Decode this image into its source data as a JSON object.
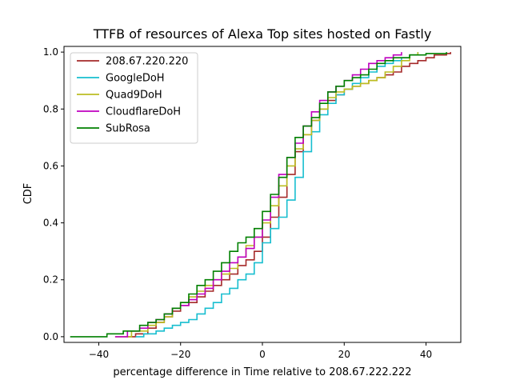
{
  "chart_data": {
    "type": "line",
    "title": "TTFB of resources of Alexa Top sites hosted on Fastly",
    "xlabel": "percentage difference in Time relative to 208.67.222.222",
    "ylabel": "CDF",
    "xlim": [
      -48.5,
      48.5
    ],
    "ylim": [
      -0.02,
      1.02
    ],
    "xticks": [
      -40,
      -20,
      0,
      20,
      40
    ],
    "yticks": [
      0.0,
      0.2,
      0.4,
      0.6,
      0.8,
      1.0
    ],
    "xtick_labels": [
      "−40",
      "−20",
      "0",
      "20",
      "40"
    ],
    "ytick_labels": [
      "0.0",
      "0.2",
      "0.4",
      "0.6",
      "0.8",
      "1.0"
    ],
    "grid": false,
    "legend_position": "top-left",
    "series": [
      {
        "name": "208.67.220.220",
        "color": "#a52a2a",
        "x": [
          -33,
          -31,
          -28,
          -26,
          -24,
          -22,
          -20,
          -18,
          -16,
          -14,
          -12,
          -10,
          -8,
          -6,
          -4,
          -2,
          0,
          2,
          4,
          6,
          8,
          10,
          12,
          14,
          16,
          18,
          20,
          22,
          24,
          26,
          28,
          30,
          32,
          34,
          36,
          38,
          40,
          42,
          44,
          45,
          46
        ],
        "y": [
          0.0,
          0.01,
          0.03,
          0.05,
          0.07,
          0.09,
          0.11,
          0.12,
          0.14,
          0.16,
          0.18,
          0.2,
          0.22,
          0.25,
          0.27,
          0.3,
          0.35,
          0.42,
          0.49,
          0.57,
          0.65,
          0.71,
          0.76,
          0.8,
          0.83,
          0.85,
          0.87,
          0.88,
          0.89,
          0.9,
          0.91,
          0.92,
          0.93,
          0.95,
          0.96,
          0.97,
          0.98,
          0.99,
          0.99,
          0.995,
          1.0
        ]
      },
      {
        "name": "GoogleDoH",
        "color": "#17becf",
        "x": [
          -31,
          -29,
          -26,
          -24,
          -22,
          -20,
          -18,
          -16,
          -14,
          -12,
          -10,
          -8,
          -6,
          -4,
          -2,
          0,
          2,
          4,
          6,
          8,
          10,
          12,
          14,
          16,
          18,
          20,
          22,
          24,
          26,
          28,
          30,
          32,
          34,
          36,
          38
        ],
        "y": [
          0.0,
          0.01,
          0.02,
          0.03,
          0.04,
          0.05,
          0.06,
          0.08,
          0.1,
          0.12,
          0.15,
          0.17,
          0.2,
          0.22,
          0.26,
          0.33,
          0.38,
          0.42,
          0.48,
          0.56,
          0.65,
          0.72,
          0.78,
          0.82,
          0.85,
          0.87,
          0.89,
          0.91,
          0.93,
          0.95,
          0.96,
          0.97,
          0.98,
          0.99,
          1.0
        ]
      },
      {
        "name": "Quad9DoH",
        "color": "#bcbd22",
        "x": [
          -36,
          -32,
          -28,
          -26,
          -24,
          -22,
          -20,
          -18,
          -16,
          -14,
          -12,
          -10,
          -8,
          -6,
          -4,
          -2,
          0,
          2,
          4,
          6,
          8,
          10,
          12,
          14,
          16,
          18,
          20,
          22,
          24,
          26,
          28,
          30,
          32,
          34,
          36,
          38
        ],
        "y": [
          0.0,
          0.02,
          0.04,
          0.05,
          0.07,
          0.1,
          0.12,
          0.14,
          0.16,
          0.18,
          0.2,
          0.22,
          0.24,
          0.28,
          0.32,
          0.35,
          0.4,
          0.46,
          0.53,
          0.6,
          0.66,
          0.71,
          0.76,
          0.8,
          0.84,
          0.86,
          0.87,
          0.88,
          0.89,
          0.9,
          0.91,
          0.93,
          0.95,
          0.97,
          0.99,
          1.0
        ]
      },
      {
        "name": "CloudflareDoH",
        "color": "#bf00bf",
        "x": [
          -36,
          -33,
          -30,
          -28,
          -26,
          -24,
          -22,
          -20,
          -18,
          -16,
          -14,
          -12,
          -10,
          -8,
          -6,
          -4,
          -2,
          0,
          2,
          4,
          6,
          8,
          10,
          12,
          14,
          16,
          18,
          20,
          22,
          24,
          26,
          28,
          30,
          32,
          34
        ],
        "y": [
          0.0,
          0.02,
          0.03,
          0.05,
          0.06,
          0.08,
          0.1,
          0.11,
          0.13,
          0.15,
          0.17,
          0.2,
          0.23,
          0.26,
          0.28,
          0.31,
          0.35,
          0.41,
          0.49,
          0.57,
          0.63,
          0.68,
          0.74,
          0.79,
          0.83,
          0.86,
          0.88,
          0.9,
          0.92,
          0.94,
          0.96,
          0.97,
          0.98,
          0.99,
          1.0
        ]
      },
      {
        "name": "SubRosa",
        "color": "#008000",
        "x": [
          -47,
          -38,
          -34,
          -30,
          -28,
          -26,
          -24,
          -22,
          -20,
          -18,
          -16,
          -14,
          -12,
          -10,
          -8,
          -6,
          -4,
          -2,
          0,
          2,
          4,
          6,
          8,
          10,
          12,
          14,
          16,
          18,
          20,
          22,
          24,
          26,
          28,
          30,
          32,
          36,
          40,
          45
        ],
        "y": [
          0.0,
          0.01,
          0.02,
          0.04,
          0.05,
          0.06,
          0.08,
          0.1,
          0.12,
          0.15,
          0.18,
          0.2,
          0.23,
          0.26,
          0.3,
          0.33,
          0.35,
          0.38,
          0.44,
          0.5,
          0.56,
          0.63,
          0.7,
          0.74,
          0.77,
          0.82,
          0.86,
          0.88,
          0.9,
          0.91,
          0.92,
          0.94,
          0.96,
          0.97,
          0.98,
          0.99,
          0.995,
          1.0
        ]
      }
    ]
  }
}
